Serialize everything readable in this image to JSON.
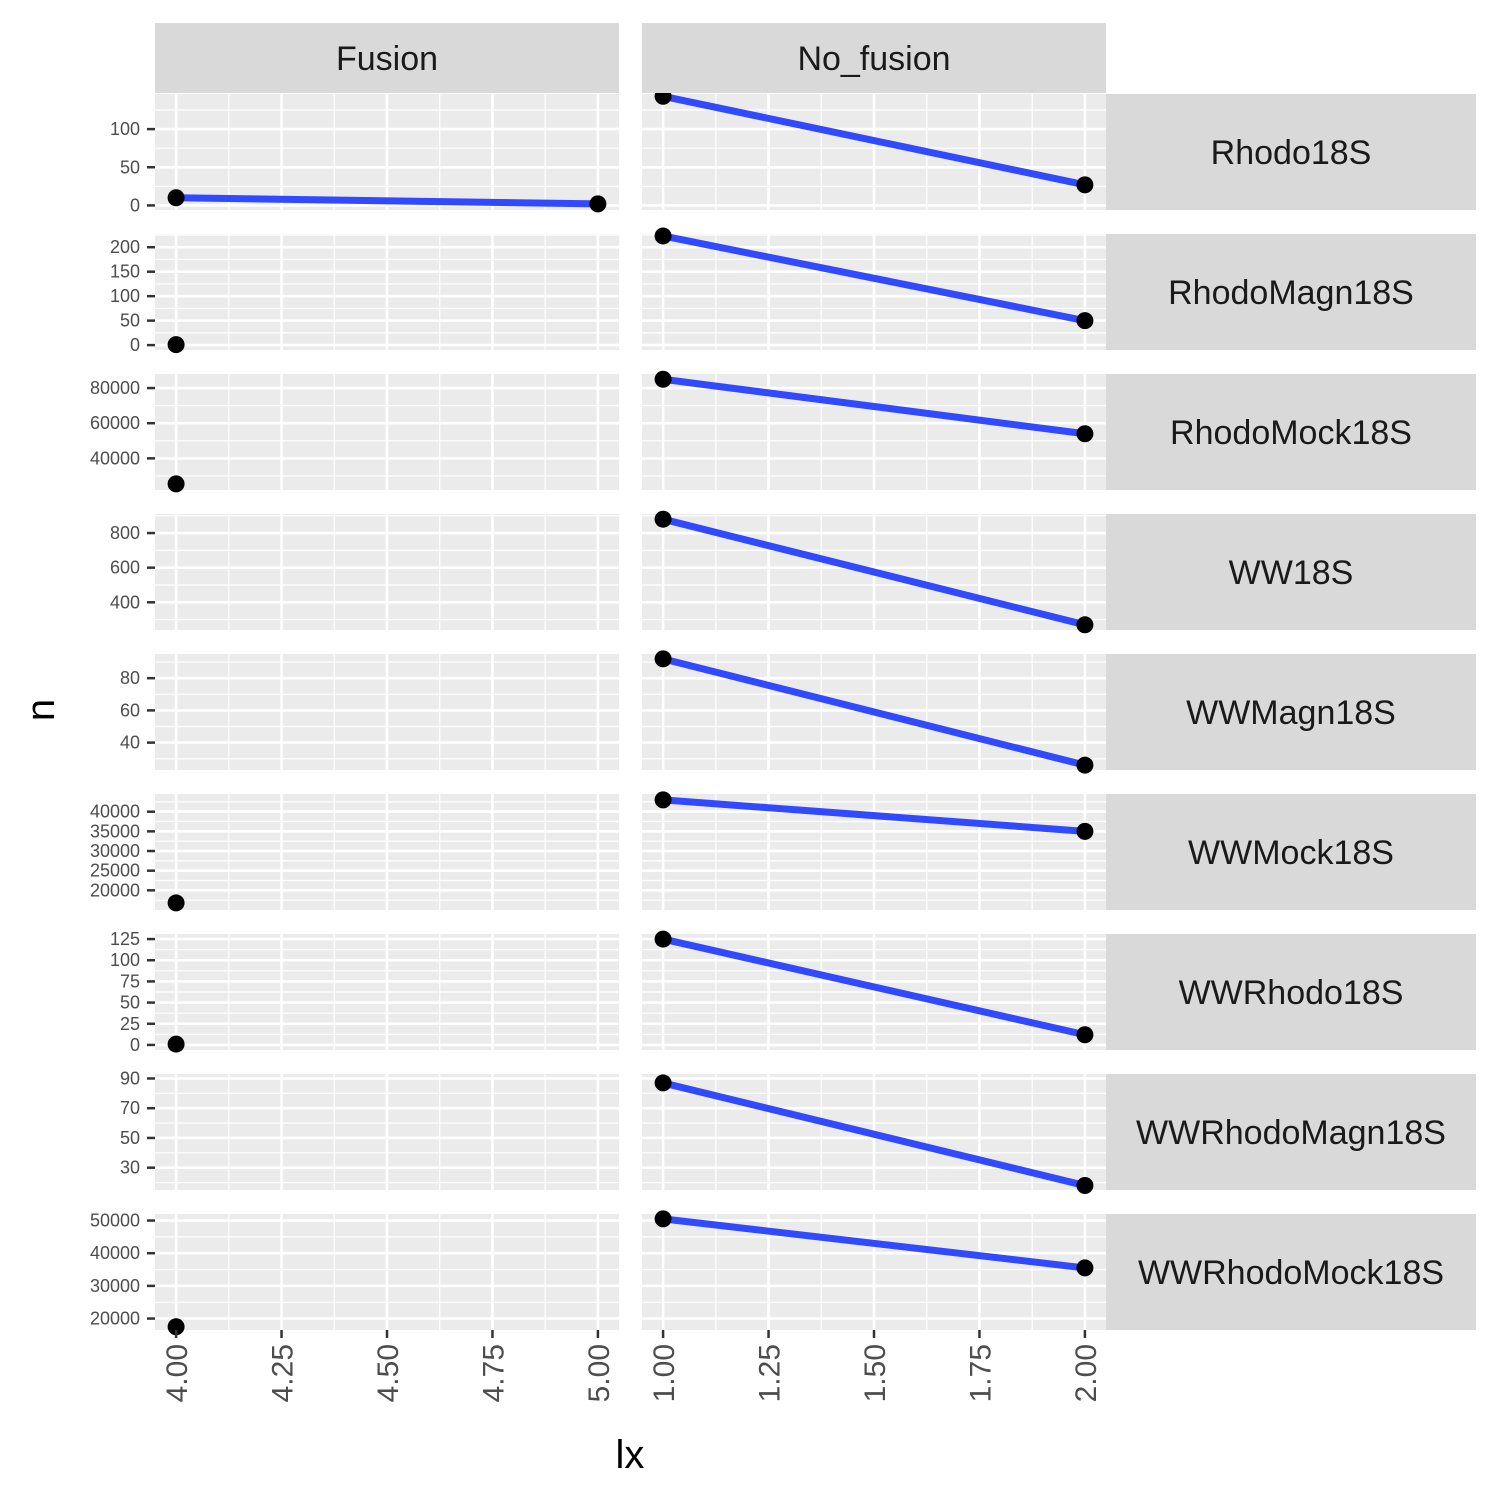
{
  "chart_data": {
    "type": "line",
    "xlabel": "lx",
    "ylabel": "n",
    "grid": true,
    "columns": [
      {
        "label": "Fusion",
        "xlim": [
          3.95,
          5.05
        ],
        "ticks": [
          "4.00",
          "4.25",
          "4.50",
          "4.75",
          "5.00"
        ],
        "tick_values": [
          4.0,
          4.25,
          4.5,
          4.75,
          5.0
        ]
      },
      {
        "label": "No_fusion",
        "xlim": [
          0.95,
          2.05
        ],
        "ticks": [
          "1.00",
          "1.25",
          "1.50",
          "1.75",
          "2.00"
        ],
        "tick_values": [
          1.0,
          1.25,
          1.5,
          1.75,
          2.0
        ]
      }
    ],
    "panels": [
      {
        "label": "Rhodo18S",
        "ylim": [
          -6,
          146
        ],
        "yticks": [
          0,
          50,
          100
        ],
        "ytick_labels": [
          "0",
          "50",
          "100"
        ],
        "fusion": {
          "x": [
            4,
            5
          ],
          "y": [
            10,
            2
          ],
          "line": true
        },
        "no_fusion": {
          "x": [
            1,
            2
          ],
          "y": [
            143,
            27
          ],
          "line": true
        }
      },
      {
        "label": "RhodoMagn18S",
        "ylim": [
          -10,
          227
        ],
        "yticks": [
          0,
          50,
          100,
          150,
          200
        ],
        "ytick_labels": [
          "0",
          "50",
          "100",
          "150",
          "200"
        ],
        "fusion": {
          "x": [
            4
          ],
          "y": [
            1
          ],
          "line": false
        },
        "no_fusion": {
          "x": [
            1,
            2
          ],
          "y": [
            223,
            50
          ],
          "line": true
        }
      },
      {
        "label": "RhodoMock18S",
        "ylim": [
          22000,
          88000
        ],
        "yticks": [
          40000,
          60000,
          80000
        ],
        "ytick_labels": [
          "40000",
          "60000",
          "80000"
        ],
        "fusion": {
          "x": [
            4
          ],
          "y": [
            25500
          ],
          "line": false
        },
        "no_fusion": {
          "x": [
            1,
            2
          ],
          "y": [
            85000,
            54000
          ],
          "line": true
        }
      },
      {
        "label": "WW18S",
        "ylim": [
          240,
          910
        ],
        "yticks": [
          400,
          600,
          800
        ],
        "ytick_labels": [
          "400",
          "600",
          "800"
        ],
        "fusion": {
          "x": [],
          "y": [],
          "line": false
        },
        "no_fusion": {
          "x": [
            1,
            2
          ],
          "y": [
            880,
            270
          ],
          "line": true
        }
      },
      {
        "label": "WWMagn18S",
        "ylim": [
          23,
          95
        ],
        "yticks": [
          40,
          60,
          80
        ],
        "ytick_labels": [
          "40",
          "60",
          "80"
        ],
        "fusion": {
          "x": [],
          "y": [],
          "line": false
        },
        "no_fusion": {
          "x": [
            1,
            2
          ],
          "y": [
            92,
            26
          ],
          "line": true
        }
      },
      {
        "label": "WWMock18S",
        "ylim": [
          15000,
          44500
        ],
        "yticks": [
          20000,
          25000,
          30000,
          35000,
          40000
        ],
        "ytick_labels": [
          "20000",
          "25000",
          "30000",
          "35000",
          "40000"
        ],
        "fusion": {
          "x": [
            4
          ],
          "y": [
            16800
          ],
          "line": false
        },
        "no_fusion": {
          "x": [
            1,
            2
          ],
          "y": [
            43000,
            35000
          ],
          "line": true
        }
      },
      {
        "label": "WWRhodo18S",
        "ylim": [
          -6,
          131
        ],
        "yticks": [
          0,
          25,
          50,
          75,
          100,
          125
        ],
        "ytick_labels": [
          "0",
          "25",
          "50",
          "75",
          "100",
          "125"
        ],
        "fusion": {
          "x": [
            4
          ],
          "y": [
            1
          ],
          "line": false
        },
        "no_fusion": {
          "x": [
            1,
            2
          ],
          "y": [
            125,
            12
          ],
          "line": true
        }
      },
      {
        "label": "WWRhodoMagn18S",
        "ylim": [
          15,
          93
        ],
        "yticks": [
          30,
          50,
          70,
          90
        ],
        "ytick_labels": [
          "30",
          "50",
          "70",
          "90"
        ],
        "fusion": {
          "x": [],
          "y": [],
          "line": false
        },
        "no_fusion": {
          "x": [
            1,
            2
          ],
          "y": [
            87,
            18
          ],
          "line": true
        }
      },
      {
        "label": "WWRhodoMock18S",
        "ylim": [
          16500,
          52000
        ],
        "yticks": [
          20000,
          30000,
          40000,
          50000
        ],
        "ytick_labels": [
          "20000",
          "30000",
          "40000",
          "50000"
        ],
        "fusion": {
          "x": [
            4
          ],
          "y": [
            17500
          ],
          "line": false
        },
        "no_fusion": {
          "x": [
            1,
            2
          ],
          "y": [
            50500,
            35500
          ],
          "line": true
        }
      }
    ],
    "colors": {
      "line": "#3149ff",
      "point": "#000000",
      "panel_bg": "#ebebeb",
      "grid": "#ffffff",
      "strip_bg": "#d9d9d9"
    }
  }
}
